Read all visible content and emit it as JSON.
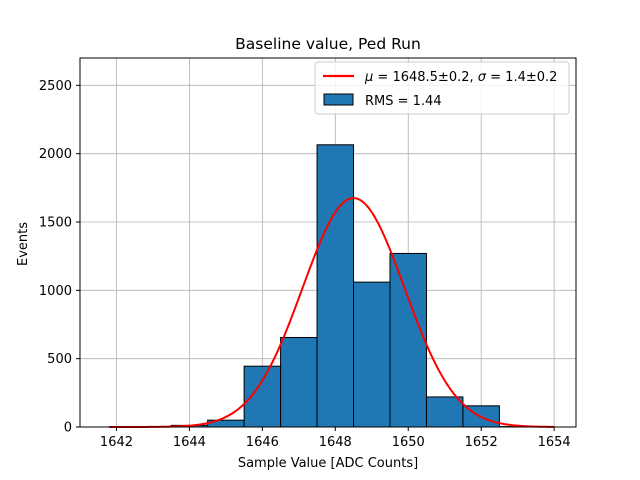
{
  "chart_data": {
    "type": "histogram",
    "title": "Baseline value, Ped Run",
    "xlabel": "Sample Value [ADC Counts]",
    "ylabel": "Events",
    "xlim": [
      1641,
      1654.6
    ],
    "ylim": [
      0,
      2700
    ],
    "x_ticks": [
      1642,
      1644,
      1646,
      1648,
      1650,
      1652,
      1654
    ],
    "y_ticks": [
      0,
      500,
      1000,
      1500,
      2000,
      2500
    ],
    "grid": true,
    "bins": [
      {
        "x0": 1641.5,
        "x1": 1642.5,
        "count": 0
      },
      {
        "x0": 1642.5,
        "x1": 1643.5,
        "count": 2
      },
      {
        "x0": 1643.5,
        "x1": 1644.5,
        "count": 12
      },
      {
        "x0": 1644.5,
        "x1": 1645.5,
        "count": 50
      },
      {
        "x0": 1645.5,
        "x1": 1646.5,
        "count": 445
      },
      {
        "x0": 1646.5,
        "x1": 1647.5,
        "count": 655
      },
      {
        "x0": 1647.5,
        "x1": 1648.5,
        "count": 2065
      },
      {
        "x0": 1648.5,
        "x1": 1649.5,
        "count": 1060
      },
      {
        "x0": 1649.5,
        "x1": 1650.5,
        "count": 1270
      },
      {
        "x0": 1650.5,
        "x1": 1651.5,
        "count": 220
      },
      {
        "x0": 1651.5,
        "x1": 1652.5,
        "count": 155
      },
      {
        "x0": 1652.5,
        "x1": 1653.5,
        "count": 3
      }
    ],
    "fit": {
      "type": "gaussian",
      "mu": 1648.5,
      "sigma": 1.4,
      "amplitude": 1675,
      "x_range": [
        1641.8,
        1654
      ],
      "color": "#ff0000"
    },
    "bar_color": "#1f77b4",
    "legend": {
      "location": "top-right",
      "entries": [
        {
          "kind": "line",
          "label_mu": "μ",
          "label_rest1": " = 1648.5±0.2, ",
          "label_sigma": "σ",
          "label_rest2": " = 1.4±0.2"
        },
        {
          "kind": "patch",
          "label": "RMS = 1.44"
        }
      ]
    }
  }
}
